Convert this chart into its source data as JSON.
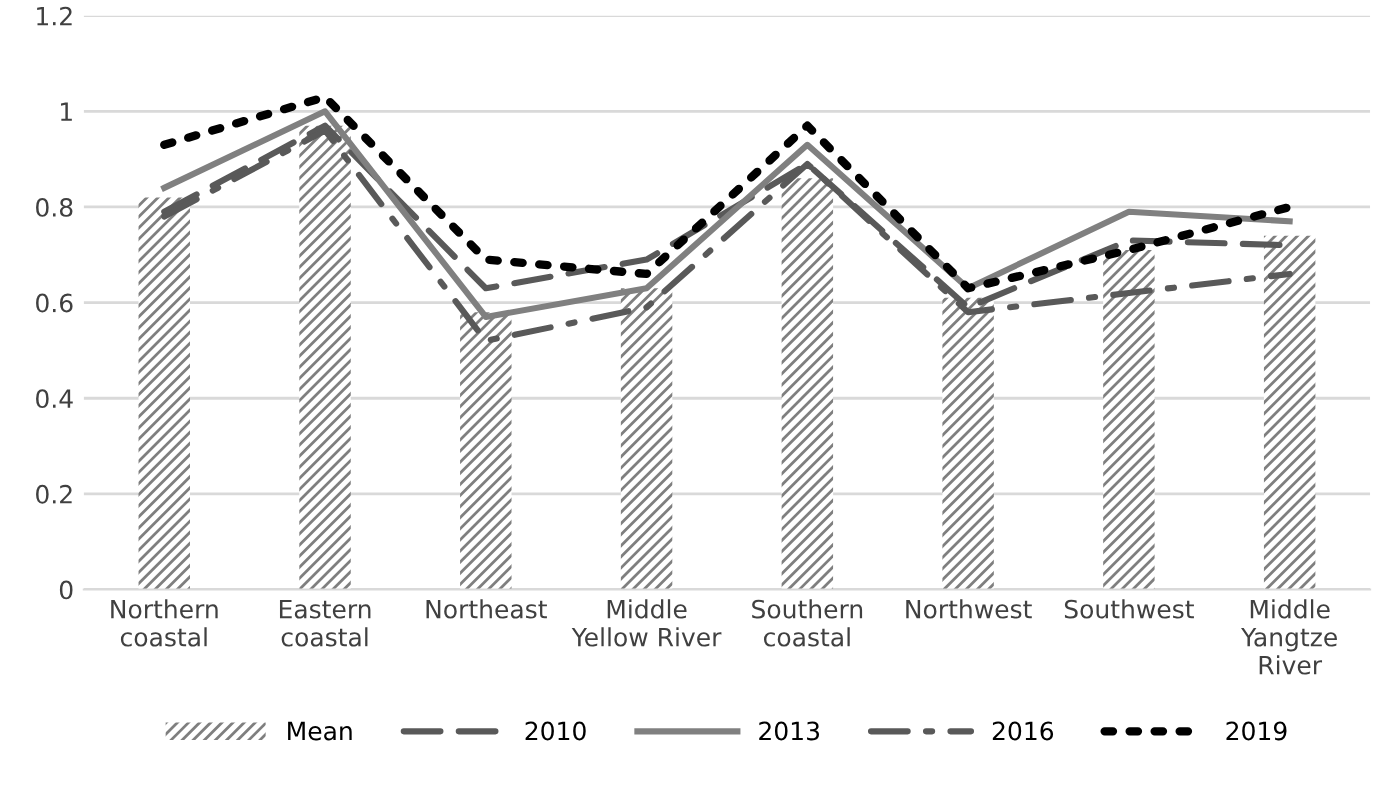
{
  "chart_data": {
    "type": "bar",
    "categories": [
      "Northern\ncoastal",
      "Eastern\ncoastal",
      "Northeast",
      "Middle\nYellow River",
      "Southern\ncoastal",
      "Northwest",
      "Southwest",
      "Middle\nYangtze\nRiver"
    ],
    "series": [
      {
        "name": "Mean",
        "color": "#7f7f7f",
        "values": [
          0.82,
          0.97,
          0.58,
          0.63,
          0.86,
          0.61,
          0.71,
          0.74
        ]
      },
      {
        "name": "2010",
        "type": "line",
        "line_style": "dashed",
        "color": "#595959",
        "values": [
          0.79,
          0.97,
          0.63,
          0.69,
          0.89,
          0.59,
          0.73,
          0.72
        ]
      },
      {
        "name": "2013",
        "type": "line",
        "line_style": "solid",
        "color": "#808080",
        "values": [
          0.84,
          1.0,
          0.57,
          0.63,
          0.93,
          0.63,
          0.79,
          0.77
        ]
      },
      {
        "name": "2016",
        "type": "line",
        "line_style": "dashdot",
        "color": "#595959",
        "values": [
          0.78,
          0.96,
          0.52,
          0.59,
          0.89,
          0.58,
          0.62,
          0.66
        ]
      },
      {
        "name": "2019",
        "type": "line",
        "line_style": "dotted",
        "color": "#000000",
        "values": [
          0.93,
          1.03,
          0.69,
          0.66,
          0.97,
          0.63,
          0.71,
          0.8
        ]
      }
    ],
    "ylim": [
      0,
      1.2
    ],
    "yticks": [
      0,
      0.2,
      0.4,
      0.6,
      0.8,
      1,
      1.2
    ],
    "grid": "y",
    "legend": "bottom"
  }
}
